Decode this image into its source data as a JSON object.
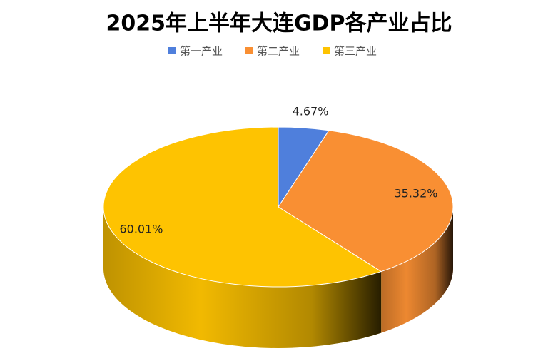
{
  "chart_data": {
    "type": "pie",
    "title": "2025年上半年大连GDP各产业占比",
    "categories": [
      "第一产业",
      "第二产业",
      "第三产业"
    ],
    "values": [
      4.67,
      35.32,
      60.01
    ],
    "value_labels": [
      "4.67%",
      "35.32%",
      "60.01%"
    ],
    "colors": [
      "#4f7fdc",
      "#f98f33",
      "#fec301"
    ]
  }
}
